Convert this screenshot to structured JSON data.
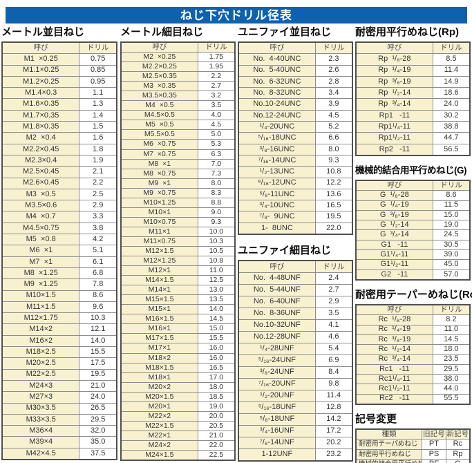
{
  "page_title": "ねじ下穴ドリル径表",
  "colors": {
    "banner_blue": "#0e61ad",
    "cell_cream": "#f7f1d0",
    "border_dark": "#4f4f4f",
    "border_light": "#8c8c8c"
  },
  "tables": {
    "metric_coarse": {
      "heading": "メートル並目ねじ",
      "col_headers": [
        "呼び",
        "ドリル"
      ],
      "rows": [
        [
          "M1  ×0.25",
          "0.75"
        ],
        [
          "M1.1×0.25",
          "0.85"
        ],
        [
          "M1.2×0.25",
          "0.95"
        ],
        [
          "M1.4×0.3",
          "1.1"
        ],
        [
          "M1.6×0.35",
          "1.3"
        ],
        [
          "M1.7×0.35",
          "1.4"
        ],
        [
          "M1.8×0.35",
          "1.5"
        ],
        [
          "M2  ×0.4",
          "1.6"
        ],
        [
          "M2.2×0.45",
          "1.8"
        ],
        [
          "M2.3×0.4",
          "1.9"
        ],
        [
          "M2.5×0.45",
          "2.1"
        ],
        [
          "M2.6×0.45",
          "2.2"
        ],
        [
          "M3  ×0.5",
          "2.5"
        ],
        [
          "M3.5×0.6",
          "2.9"
        ],
        [
          "M4  ×0.7",
          "3.3"
        ],
        [
          "M4.5×0.75",
          "3.8"
        ],
        [
          "M5  ×0.8",
          "4.2"
        ],
        [
          "M6  ×1",
          "5.1"
        ],
        [
          "M7  ×1",
          "6.1"
        ],
        [
          "M8  ×1.25",
          "6.8"
        ],
        [
          "M9  ×1.25",
          "7.8"
        ],
        [
          "M10×1.5",
          "8.6"
        ],
        [
          "M11×1.5",
          "9.6"
        ],
        [
          "M12×1.75",
          "10.3"
        ],
        [
          "M14×2",
          "12.1"
        ],
        [
          "M16×2",
          "14.0"
        ],
        [
          "M18×2.5",
          "15.5"
        ],
        [
          "M20×2.5",
          "17.5"
        ],
        [
          "M22×2.5",
          "19.5"
        ],
        [
          "M24×3",
          "21.0"
        ],
        [
          "M27×3",
          "24.0"
        ],
        [
          "M30×3.5",
          "26.5"
        ],
        [
          "M33×3.5",
          "29.5"
        ],
        [
          "M36×4",
          "32.0"
        ],
        [
          "M39×4",
          "35.0"
        ],
        [
          "M42×4.5",
          "37.5"
        ]
      ]
    },
    "metric_fine": {
      "heading": "メートル細目ねじ",
      "col_headers": [
        "呼び",
        "ドリル"
      ],
      "rows": [
        [
          "M2  ×0.25",
          "1.75"
        ],
        [
          "M2.2×0.25",
          "1.95"
        ],
        [
          "M2.5×0.35",
          "2.2"
        ],
        [
          "M3  ×0.35",
          "2.7"
        ],
        [
          "M3.5×0.35",
          "3.2"
        ],
        [
          "M4  ×0.5",
          "3.5"
        ],
        [
          "M4.5×0.5",
          "4.0"
        ],
        [
          "M5  ×0.5",
          "4.5"
        ],
        [
          "M5.5×0.5",
          "5.0"
        ],
        [
          "M6  ×0.75",
          "5.3"
        ],
        [
          "M7  ×0.75",
          "6.3"
        ],
        [
          "M8  ×1",
          "7.0"
        ],
        [
          "M8  ×0.75",
          "7.3"
        ],
        [
          "M9  ×1",
          "8.0"
        ],
        [
          "M9  ×0.75",
          "8.3"
        ],
        [
          "M10×1.25",
          "8.8"
        ],
        [
          "M10×1",
          "9.0"
        ],
        [
          "M10×0.75",
          "9.3"
        ],
        [
          "M11×1",
          "10.0"
        ],
        [
          "M11×0.75",
          "10.3"
        ],
        [
          "M12×1.5",
          "10.5"
        ],
        [
          "M12×1.25",
          "10.8"
        ],
        [
          "M12×1",
          "11.0"
        ],
        [
          "M14×1.5",
          "12.5"
        ],
        [
          "M14×1",
          "13.0"
        ],
        [
          "M15×1.5",
          "13.5"
        ],
        [
          "M15×1",
          "14.0"
        ],
        [
          "M16×1.5",
          "14.5"
        ],
        [
          "M16×1",
          "15.0"
        ],
        [
          "M17×1.5",
          "15.5"
        ],
        [
          "M17×1",
          "16.0"
        ],
        [
          "M18×2",
          "16.0"
        ],
        [
          "M18×1.5",
          "16.5"
        ],
        [
          "M18×1",
          "17.0"
        ],
        [
          "M20×2",
          "18.0"
        ],
        [
          "M20×1.5",
          "18.5"
        ],
        [
          "M20×1",
          "19.0"
        ],
        [
          "M22×2",
          "20.0"
        ],
        [
          "M22×1.5",
          "20.5"
        ],
        [
          "M22×1",
          "21.0"
        ],
        [
          "M24×2",
          "22.0"
        ],
        [
          "M24×1.5",
          "22.5"
        ]
      ]
    },
    "unified_coarse": {
      "heading": "ユニファイ並目ねじ",
      "col_headers": [
        "呼び",
        "ドリル"
      ],
      "rows": [
        [
          "No.  4-40UNC",
          "2.3"
        ],
        [
          "No.  5-40UNC",
          "2.6"
        ],
        [
          "No.  6-32UNC",
          "2.8"
        ],
        [
          "No.  8-32UNC",
          "3.4"
        ],
        [
          "No.10-24UNC",
          "3.9"
        ],
        [
          "No.12-24UNC",
          "4.5"
        ],
        [
          "¹/₄-20UNC",
          "5.2"
        ],
        [
          "⁵/₁₆-18UNC",
          "6.6"
        ],
        [
          "³/₈-16UNC",
          "8.0"
        ],
        [
          "⁷/₁₆-14UNC",
          "9.3"
        ],
        [
          "¹/₂-13UNC",
          "10.8"
        ],
        [
          "⁹/₁₆-12UNC",
          "12.2"
        ],
        [
          "⁵/₈-11UNC",
          "13.6"
        ],
        [
          "³/₄-10UNC",
          "16.5"
        ],
        [
          "⁷/₈-  9UNC",
          "19.5"
        ],
        [
          "1-  8UNC",
          "22.0"
        ]
      ]
    },
    "unified_fine": {
      "heading": "ユニファイ細目ねじ",
      "col_headers": [
        "呼び",
        "ドリル"
      ],
      "rows": [
        [
          "No.  4-48UNF",
          "2.4"
        ],
        [
          "No.  5-44UNF",
          "2.7"
        ],
        [
          "No.  6-40UNF",
          "2.9"
        ],
        [
          "No.  8-36UNF",
          "3.5"
        ],
        [
          "No.10-32UNF",
          "4.1"
        ],
        [
          "No.12-28UNF",
          "4.6"
        ],
        [
          "¹/₄-28UNF",
          "5.4"
        ],
        [
          "⁵/₁₆-24UNF",
          "6.9"
        ],
        [
          "³/₈-24UNF",
          "8.4"
        ],
        [
          "⁷/₁₆-20UNF",
          "9.8"
        ],
        [
          "¹/₂-20UNF",
          "11.4"
        ],
        [
          "⁹/₁₆-18UNF",
          "12.8"
        ],
        [
          "⁵/₈-18UNF",
          "14.2"
        ],
        [
          "³/₄-16UNF",
          "17.2"
        ],
        [
          "⁷/₈-14UNF",
          "20.2"
        ],
        [
          "1-12UNF",
          "23.2"
        ]
      ]
    },
    "rp": {
      "heading": "耐密用平行めねじ(Rp)",
      "col_headers": [
        "呼び",
        "ドリル"
      ],
      "rows": [
        [
          "Rp  ¹/₈-28",
          "8.5"
        ],
        [
          "Rp  ¹/₄-19",
          "11.4"
        ],
        [
          "Rp  ³/₈-19",
          "14.9"
        ],
        [
          "Rp  ¹/₂-14",
          "18.6"
        ],
        [
          "Rp  ³/₄-14",
          "24.0"
        ],
        [
          "Rp1   -11",
          "30.2"
        ],
        [
          "Rp1¹/₄-11",
          "38.8"
        ],
        [
          "Rp1¹/₂-11",
          "44.7"
        ],
        [
          "Rp2   -11",
          "56.5"
        ]
      ]
    },
    "g": {
      "heading": "機械的結合用平行めねじ(G)",
      "col_headers": [
        "呼び",
        "ドリル"
      ],
      "rows": [
        [
          "G  ¹/₈-28",
          "8.6"
        ],
        [
          "G  ¹/₄-19",
          "11.5"
        ],
        [
          "G  ³/₈-19",
          "15.0"
        ],
        [
          "G  ¹/₂-14",
          "19.0"
        ],
        [
          "G  ³/₄-14",
          "24.5"
        ],
        [
          "G1   -11",
          "30.5"
        ],
        [
          "G1¹/₄-11",
          "39.0"
        ],
        [
          "G1¹/₂-11",
          "45.0"
        ],
        [
          "G2   -11",
          "57.0"
        ]
      ]
    },
    "rc": {
      "heading": "耐密用テーパーめねじ(Rc)",
      "col_headers": [
        "呼び",
        "ドリル"
      ],
      "rows": [
        [
          "Rc  ¹/₈-28",
          "8.2"
        ],
        [
          "Rc  ¹/₄-19",
          "11.0"
        ],
        [
          "Rc  ³/₈-19",
          "14.5"
        ],
        [
          "Rc  ¹/₂-14",
          "18.0"
        ],
        [
          "Rc  ³/₄-14",
          "23.5"
        ],
        [
          "Rc1   -11",
          "29.5"
        ],
        [
          "Rc1¹/₄-11",
          "38.0"
        ],
        [
          "Rc1¹/₂-11",
          "44.0"
        ],
        [
          "Rc2   -11",
          "55.5"
        ]
      ]
    },
    "symbol_change": {
      "heading": "記号変更",
      "col_headers": [
        "種類",
        "旧記号",
        "新記号"
      ],
      "rows": [
        [
          "耐密用テーパめねじ",
          "PT",
          "Rc"
        ],
        [
          "耐密用平行めねじ",
          "PS",
          "Rp"
        ],
        [
          "機械的結合用平行めねじ",
          "PF",
          "G"
        ]
      ]
    }
  }
}
